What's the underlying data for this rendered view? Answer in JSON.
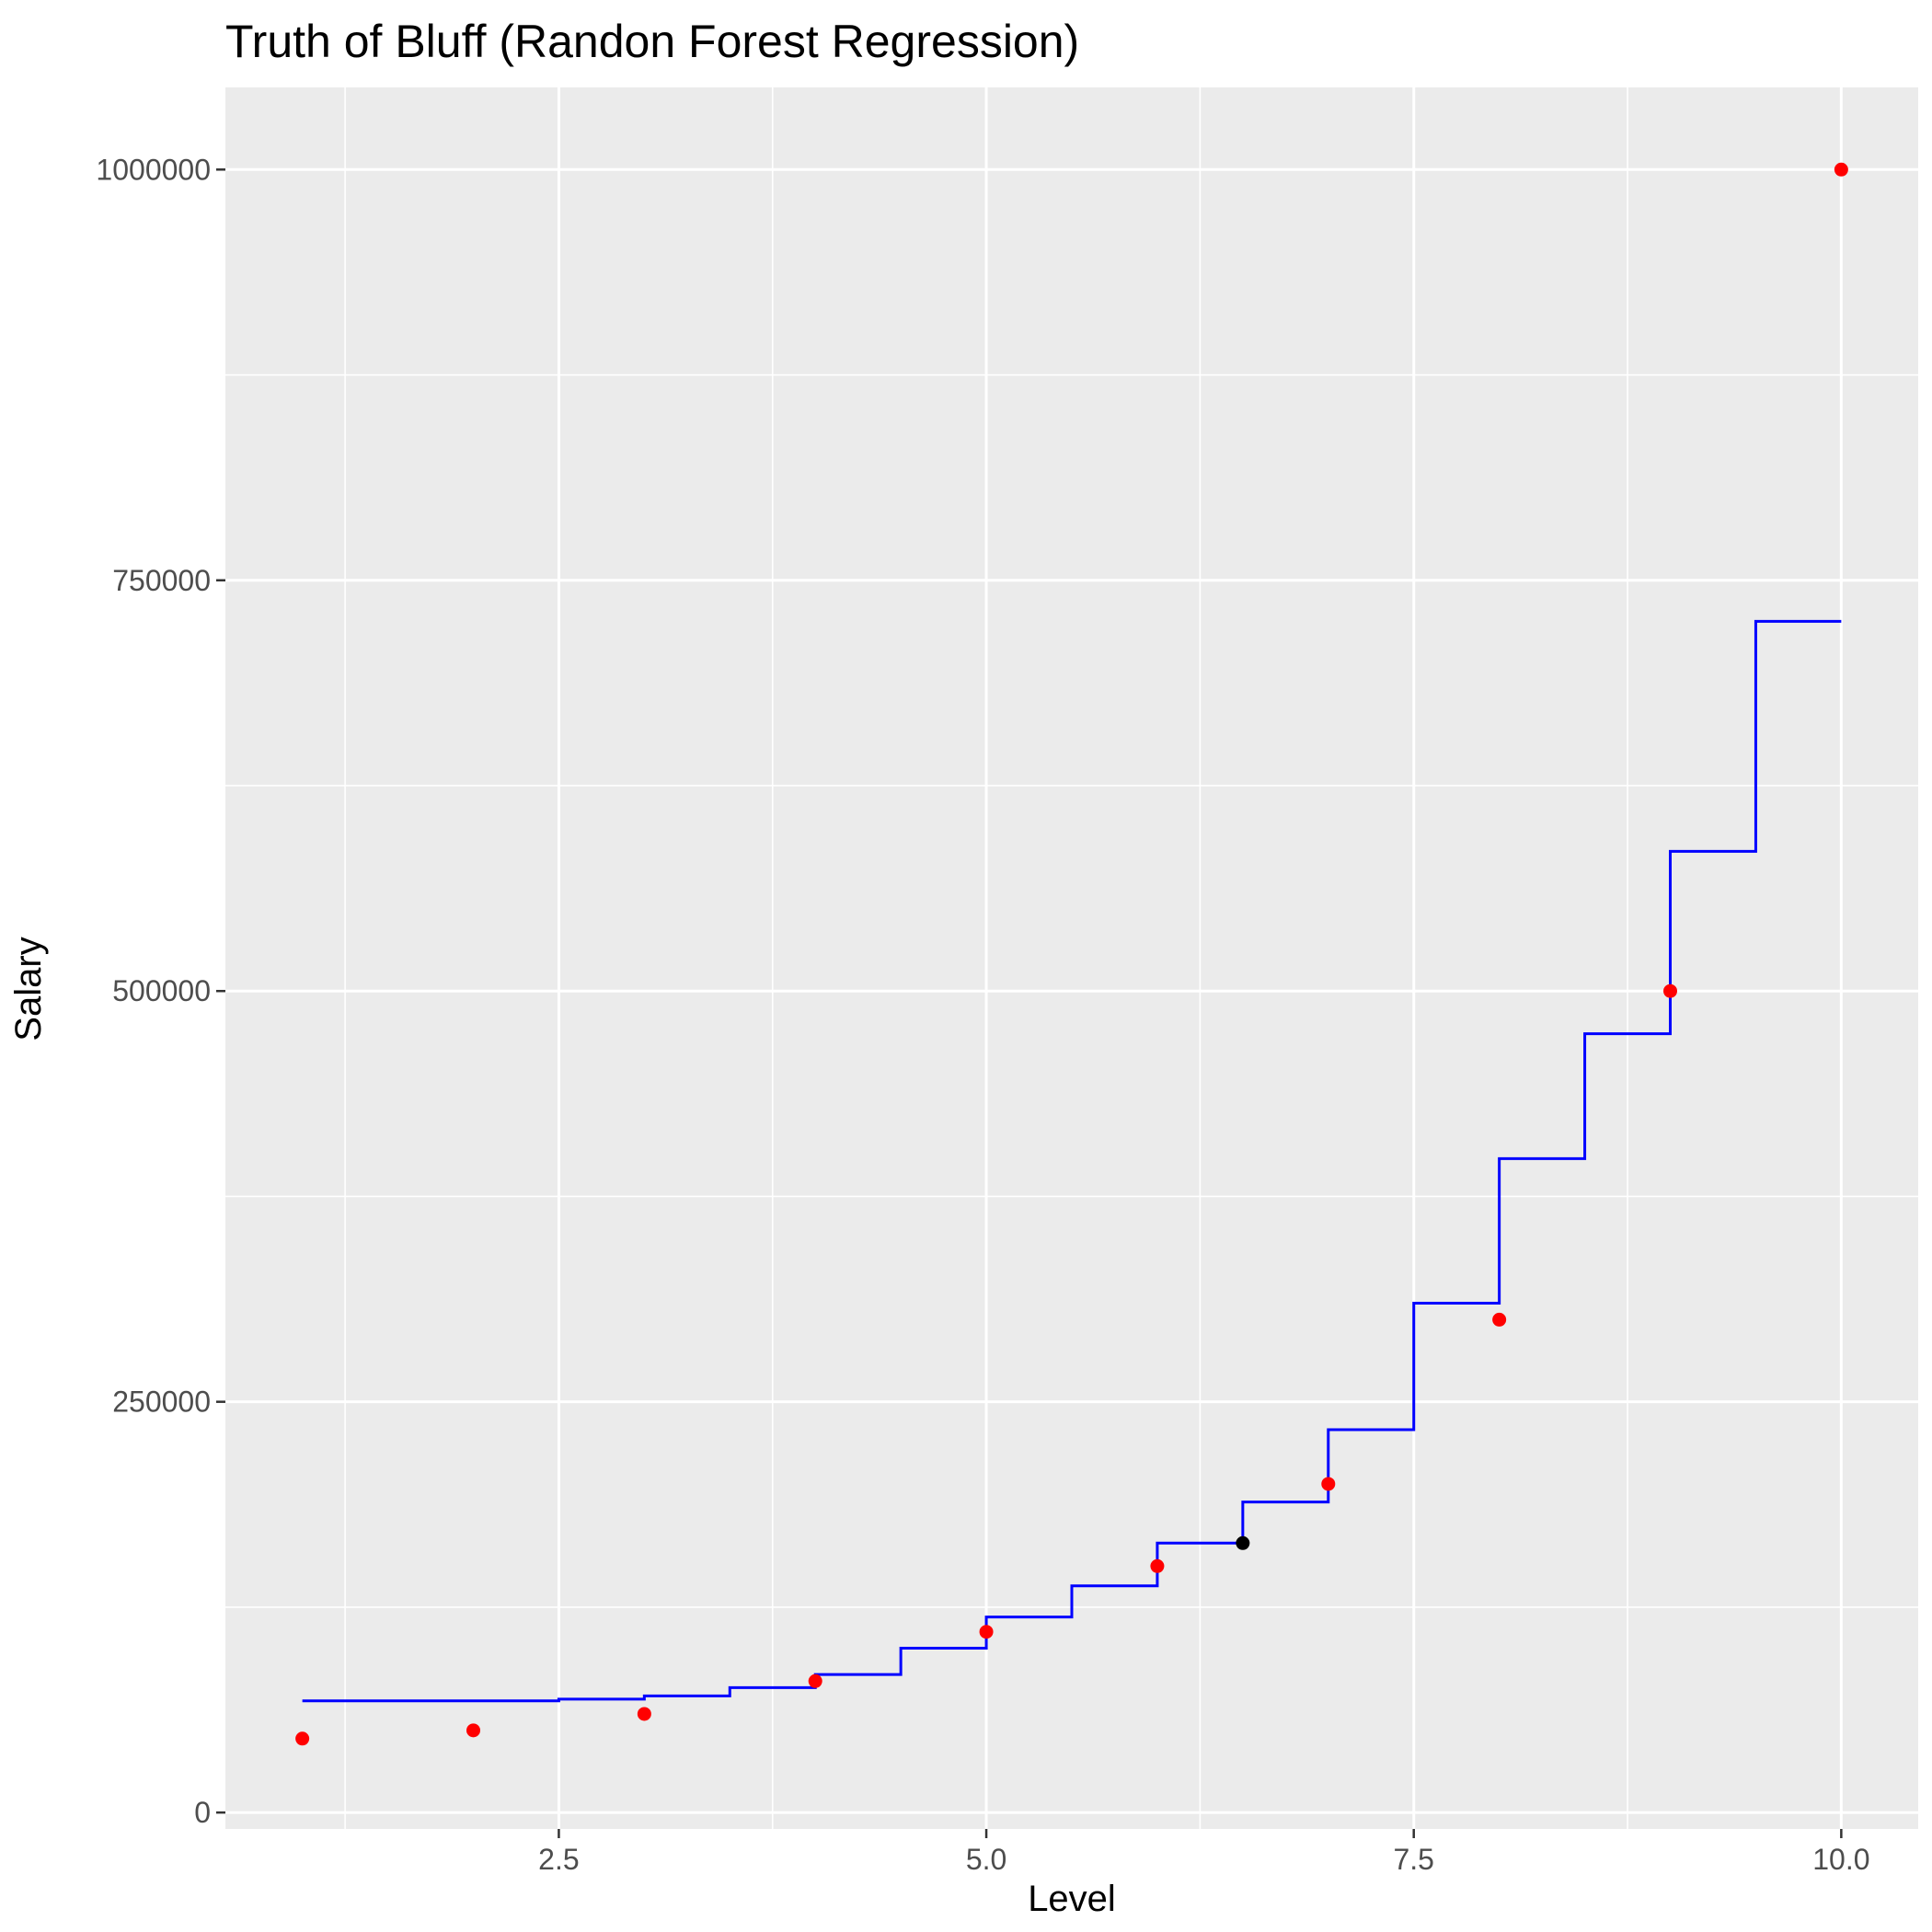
{
  "chart_data": {
    "type": "line",
    "title": "Truth of Bluff (Randon Forest Regression)",
    "xlabel": "Level",
    "ylabel": "Salary",
    "xlim": [
      0.55,
      10.45
    ],
    "ylim": [
      -10000,
      1050000
    ],
    "x_ticks": [
      2.5,
      5.0,
      7.5,
      10.0
    ],
    "x_tick_labels": [
      "2.5",
      "5.0",
      "7.5",
      "10.0"
    ],
    "y_ticks": [
      0,
      250000,
      500000,
      750000,
      1000000
    ],
    "y_tick_labels": [
      "0",
      "250000",
      "500000",
      "750000",
      "1000000"
    ],
    "grid": true,
    "legend": "none",
    "colors": {
      "panel": "#ebebeb",
      "grid": "#ffffff",
      "points": "#ff0000",
      "line": "#0000ff",
      "prediction_point": "#000000"
    },
    "series": [
      {
        "type": "scatter",
        "x": [
          1,
          2,
          3,
          4,
          5,
          6,
          7,
          8,
          9,
          10
        ],
        "y": [
          45000,
          50000,
          60000,
          80000,
          110000,
          150000,
          200000,
          300000,
          500000,
          1000000
        ]
      },
      {
        "type": "step",
        "steps": [
          {
            "x0": 1.0,
            "x1": 2.5,
            "y": 68000
          },
          {
            "x0": 2.5,
            "x1": 3.0,
            "y": 69000
          },
          {
            "x0": 3.0,
            "x1": 3.5,
            "y": 71000
          },
          {
            "x0": 3.5,
            "x1": 4.0,
            "y": 76000
          },
          {
            "x0": 4.0,
            "x1": 4.5,
            "y": 84000
          },
          {
            "x0": 4.5,
            "x1": 5.0,
            "y": 100000
          },
          {
            "x0": 5.0,
            "x1": 5.5,
            "y": 119000
          },
          {
            "x0": 5.5,
            "x1": 6.0,
            "y": 138000
          },
          {
            "x0": 6.0,
            "x1": 6.5,
            "y": 164000
          },
          {
            "x0": 6.5,
            "x1": 7.0,
            "y": 189000
          },
          {
            "x0": 7.0,
            "x1": 7.5,
            "y": 233000
          },
          {
            "x0": 7.5,
            "x1": 8.0,
            "y": 310000
          },
          {
            "x0": 8.0,
            "x1": 8.5,
            "y": 398000
          },
          {
            "x0": 8.5,
            "x1": 9.0,
            "y": 474000
          },
          {
            "x0": 9.0,
            "x1": 9.5,
            "y": 585000
          },
          {
            "x0": 9.5,
            "x1": 10.0,
            "y": 725000
          }
        ]
      },
      {
        "type": "scatter",
        "x": [
          6.5
        ],
        "y": [
          164000
        ]
      }
    ]
  }
}
